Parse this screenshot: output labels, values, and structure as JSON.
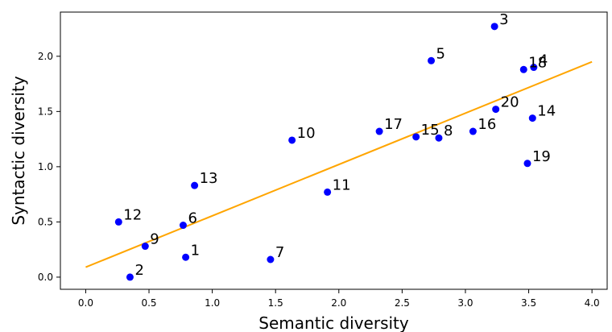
{
  "chart_data": {
    "type": "scatter",
    "xlabel": "Semantic diversity",
    "ylabel": "Syntactic diversity",
    "xlim": [
      -0.2,
      4.12
    ],
    "ylim": [
      -0.11,
      2.4
    ],
    "xticks": [
      "0.0",
      "0.5",
      "1.0",
      "1.5",
      "2.0",
      "2.5",
      "3.0",
      "3.5",
      "4.0"
    ],
    "yticks": [
      "0.0",
      "0.5",
      "1.0",
      "1.5",
      "2.0"
    ],
    "points": [
      {
        "label": "1",
        "x": 0.79,
        "y": 0.18
      },
      {
        "label": "2",
        "x": 0.35,
        "y": 0.0
      },
      {
        "label": "3",
        "x": 3.23,
        "y": 2.27
      },
      {
        "label": "4",
        "x": 3.54,
        "y": 1.9
      },
      {
        "label": "5",
        "x": 2.73,
        "y": 1.96
      },
      {
        "label": "6",
        "x": 0.77,
        "y": 0.47
      },
      {
        "label": "7",
        "x": 1.46,
        "y": 0.16
      },
      {
        "label": "8",
        "x": 2.79,
        "y": 1.26
      },
      {
        "label": "9",
        "x": 0.47,
        "y": 0.28
      },
      {
        "label": "10",
        "x": 1.63,
        "y": 1.24
      },
      {
        "label": "11",
        "x": 1.91,
        "y": 0.77
      },
      {
        "label": "12",
        "x": 0.26,
        "y": 0.5
      },
      {
        "label": "13",
        "x": 0.86,
        "y": 0.83
      },
      {
        "label": "14",
        "x": 3.53,
        "y": 1.44
      },
      {
        "label": "15",
        "x": 2.61,
        "y": 1.27
      },
      {
        "label": "16",
        "x": 3.06,
        "y": 1.32
      },
      {
        "label": "17",
        "x": 2.32,
        "y": 1.32
      },
      {
        "label": "18",
        "x": 3.46,
        "y": 1.88
      },
      {
        "label": "19",
        "x": 3.49,
        "y": 1.03
      },
      {
        "label": "20",
        "x": 3.24,
        "y": 1.52
      }
    ],
    "fit_line": {
      "x": [
        0.0,
        4.0
      ],
      "y": [
        0.09,
        1.95
      ]
    },
    "colors": {
      "points": "#0000ff",
      "fit_line": "#ffa500"
    }
  }
}
